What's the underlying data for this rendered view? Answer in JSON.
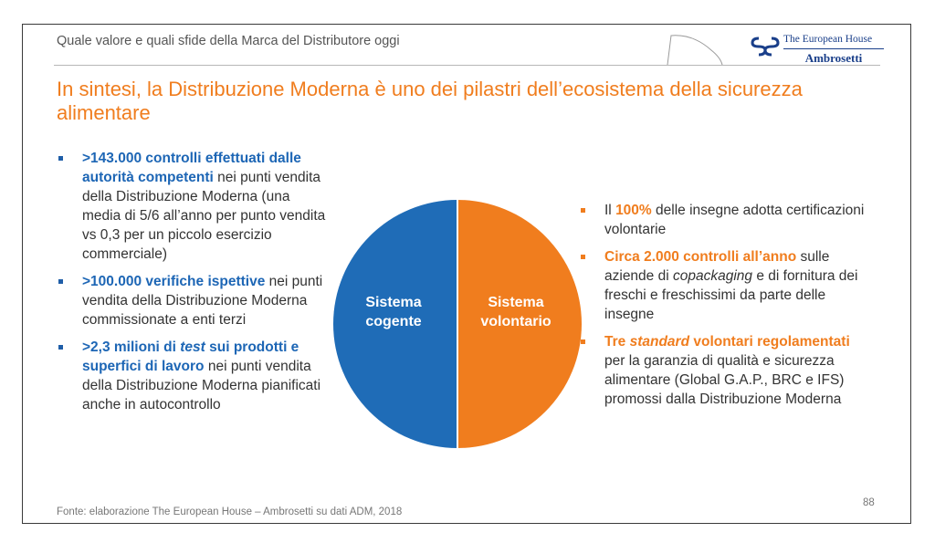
{
  "header": {
    "subtitle": "Quale valore e quali sfide della Marca del Distributore oggi",
    "logo_line1": "The European House",
    "logo_line2": "Ambrosetti"
  },
  "title": "In sintesi, la Distribuzione Moderna è uno dei pilastri dell’ecosistema della sicurezza alimentare",
  "left_bullets": [
    {
      "bold": ">143.000 controlli effettuati dalle autorità competenti",
      "text": " nei punti vendita della Distribuzione Moderna (una media di 5/6 all’anno per punto vendita vs 0,3 per un piccolo esercizio commerciale)"
    },
    {
      "bold": ">100.000 verifiche ispettive",
      "text": " nei punti vendita della Distribuzione Moderna commissionate a enti terzi"
    },
    {
      "bold_a": ">2,3 milioni di ",
      "bold_italic": "test",
      "bold_b": " sui prodotti e superfici di lavoro",
      "text": " nei punti vendita della Distribuzione Moderna pianificati anche in autocontrollo"
    }
  ],
  "pie": {
    "left_label": "Sistema cogente",
    "right_label": "Sistema volontario",
    "left_color": "#1f6cb7",
    "right_color": "#f07d1e"
  },
  "right_bullets": [
    {
      "pre": "Il ",
      "bold": "100%",
      "text": " delle insegne adotta certificazioni volontarie"
    },
    {
      "bold": "Circa 2.000 controlli all’anno",
      "text_a": " sulle aziende di ",
      "italic": "copackaging",
      "text_b": " e di fornitura dei freschi e freschissimi da parte delle insegne"
    },
    {
      "bold_a": "Tre ",
      "bold_italic": "standard",
      "bold_b": " volontari regolamentati",
      "text": " per la garanzia di qualità e sicurezza alimentare (Global G.A.P., BRC e IFS) promossi dalla Distribuzione Moderna"
    }
  ],
  "footer": {
    "source": "Fonte: elaborazione The European House – Ambrosetti su dati ADM, 2018",
    "page": "88"
  }
}
